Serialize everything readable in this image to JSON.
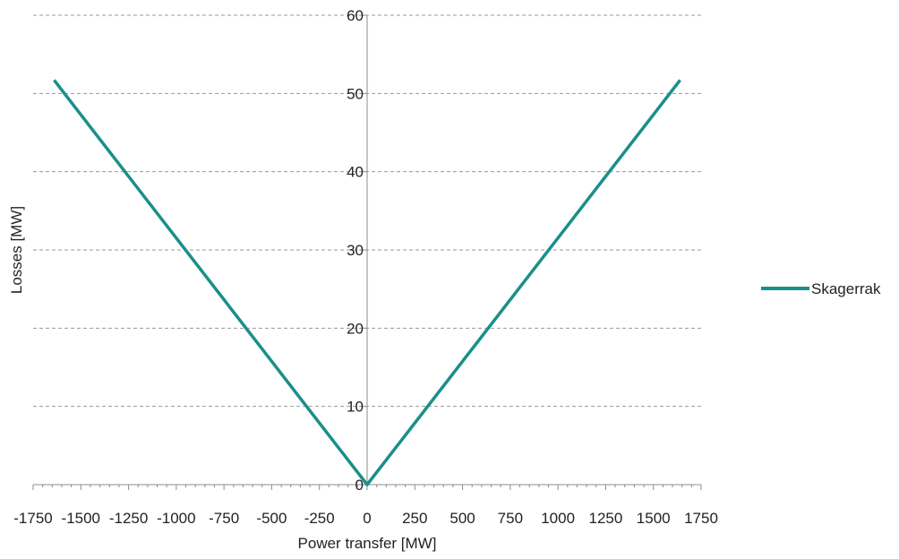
{
  "chart_data": {
    "type": "line",
    "title": "",
    "xlabel": "Power transfer [MW]",
    "ylabel": "Losses [MW]",
    "xlim": [
      -1750,
      1750
    ],
    "ylim": [
      0,
      60
    ],
    "x_ticks": [
      -1750,
      -1500,
      -1250,
      -1000,
      -750,
      -500,
      -250,
      0,
      250,
      500,
      750,
      1000,
      1250,
      1500,
      1750
    ],
    "y_ticks": [
      0,
      10,
      20,
      30,
      40,
      50,
      60
    ],
    "grid": "horizontal dashed",
    "legend_position": "right",
    "series": [
      {
        "name": "Skagerrak",
        "color": "#1a8f8a",
        "x": [
          -1640,
          0,
          1640
        ],
        "y": [
          51.7,
          0,
          51.7
        ]
      }
    ]
  }
}
